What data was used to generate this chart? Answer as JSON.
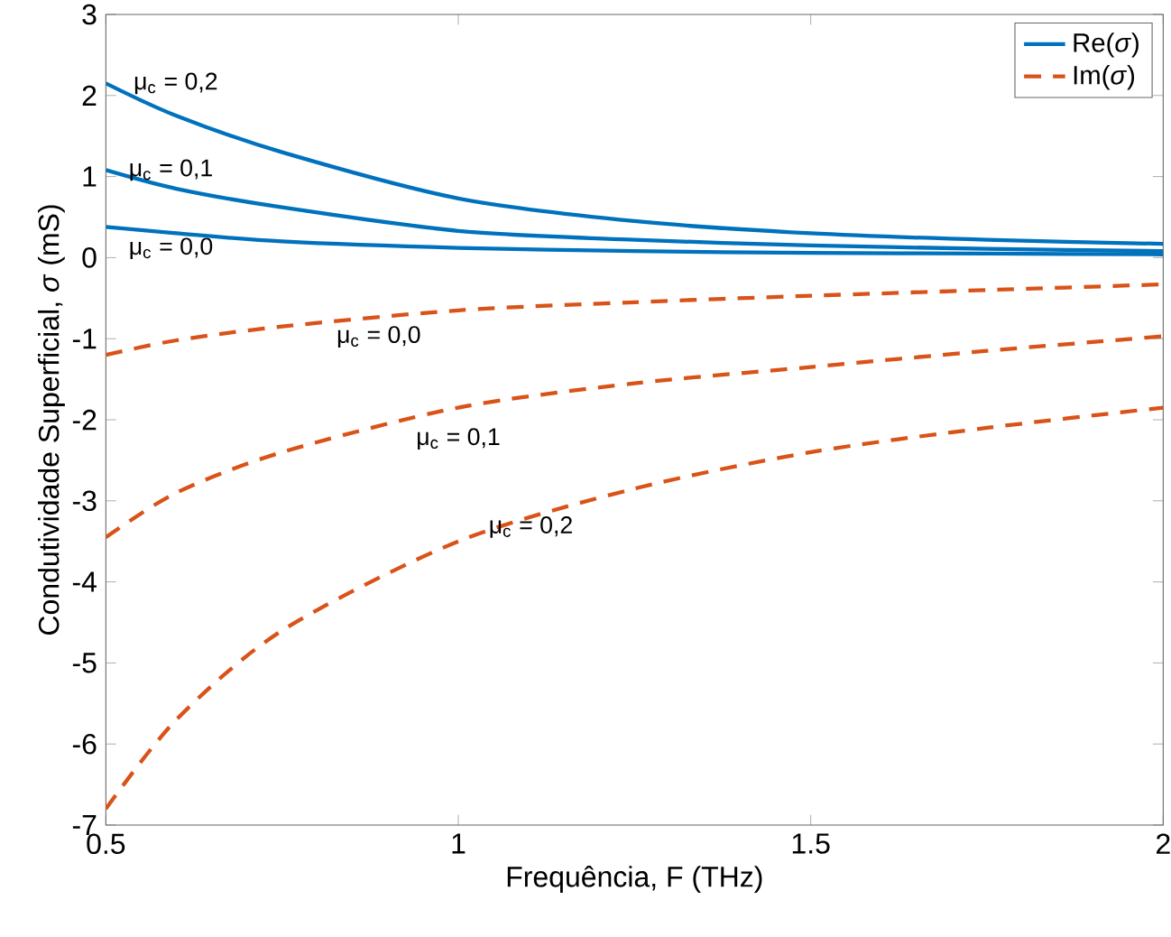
{
  "chart_data": {
    "type": "line",
    "xlabel": "Frequência, F (THz)",
    "ylabel": "Condutividade Superficial, *σ* (mS)",
    "x": [
      0.5,
      0.6,
      0.75,
      1,
      1.25,
      1.5,
      1.75,
      2
    ],
    "series": [
      {
        "name": "Re(*σ*)",
        "color": "#0072bd",
        "line_style": "solid",
        "values": [
          0.38,
          0.3,
          0.2,
          0.12,
          0.08,
          0.06,
          0.05,
          0.04
        ]
      },
      {
        "color": "#0072bd",
        "line_style": "solid",
        "values": [
          1.08,
          0.85,
          0.62,
          0.33,
          0.22,
          0.15,
          0.11,
          0.08
        ]
      },
      {
        "color": "#0072bd",
        "line_style": "solid",
        "values": [
          2.15,
          1.75,
          1.3,
          0.73,
          0.45,
          0.3,
          0.22,
          0.17
        ]
      },
      {
        "name": "Im(*σ*)",
        "color": "#d95319",
        "line_style": "dashed",
        "values": [
          -1.2,
          -1.02,
          -0.85,
          -0.65,
          -0.55,
          -0.47,
          -0.4,
          -0.33
        ]
      },
      {
        "color": "#d95319",
        "line_style": "dashed",
        "values": [
          -3.45,
          -2.9,
          -2.4,
          -1.85,
          -1.55,
          -1.35,
          -1.15,
          -0.97
        ]
      },
      {
        "color": "#d95319",
        "line_style": "dashed",
        "values": [
          -6.8,
          -5.7,
          -4.6,
          -3.5,
          -2.85,
          -2.4,
          -2.1,
          -1.85
        ]
      }
    ],
    "annotations": [
      {
        "text": "μ$_{c}$ = 0,2",
        "x": 0.5,
        "y": 2.15
      },
      {
        "text": "μ$_{c}$ = 0,1",
        "x": 0.5,
        "y": 1.08
      },
      {
        "text": "μ$_{c}$ = 0,0",
        "x": 0.5,
        "y": 0.38
      },
      {
        "text": "μ$_{c}$ = 0,0",
        "x": 1,
        "y": -0.65
      },
      {
        "text": "μ$_{c}$ = 0,1",
        "x": 1,
        "y": -1.85
      },
      {
        "text": "μ$_{c}$ = 0,2",
        "x": 1.25,
        "y": -2.85
      }
    ],
    "xlim": [
      0.5,
      2
    ],
    "ylim": [
      -7,
      3
    ],
    "xticks": [
      0.5,
      1,
      1.5,
      2
    ],
    "yticks": [
      -7,
      -6,
      -5,
      -4,
      -3,
      -2,
      -1,
      0,
      1,
      2,
      3
    ],
    "grid": false,
    "legend": "top right",
    "marker": "none"
  }
}
